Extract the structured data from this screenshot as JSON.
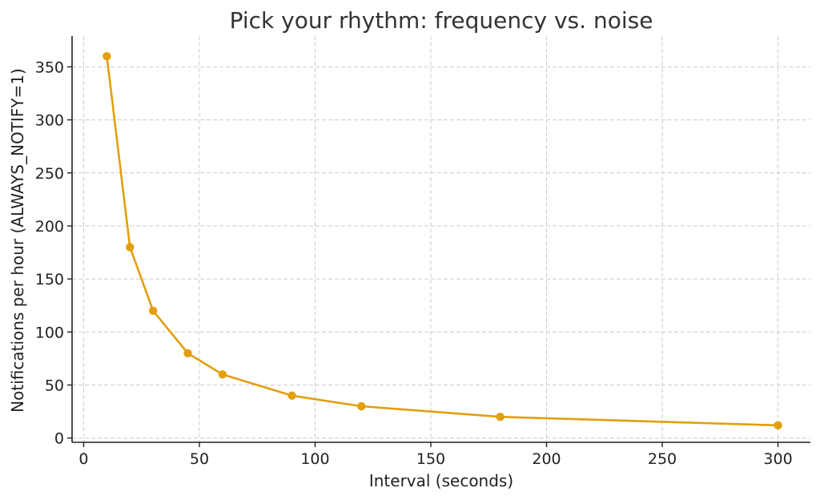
{
  "chart_data": {
    "type": "line",
    "title": "Pick your rhythm: frequency vs. noise",
    "xlabel": "Interval (seconds)",
    "ylabel": "Notifications per hour (ALWAYS_NOTIFY=1)",
    "x": [
      10,
      20,
      30,
      45,
      60,
      90,
      120,
      180,
      300
    ],
    "series": [
      {
        "values": [
          360,
          180,
          120,
          80,
          60,
          40,
          30,
          20,
          12
        ],
        "color": "#E29F0F"
      }
    ],
    "xlim": [
      -5,
      314
    ],
    "ylim": [
      -4,
      379
    ],
    "xticks": [
      0,
      50,
      100,
      150,
      200,
      250,
      300
    ],
    "yticks": [
      0,
      50,
      100,
      150,
      200,
      250,
      300,
      350
    ],
    "grid": true,
    "marker": "circle"
  }
}
